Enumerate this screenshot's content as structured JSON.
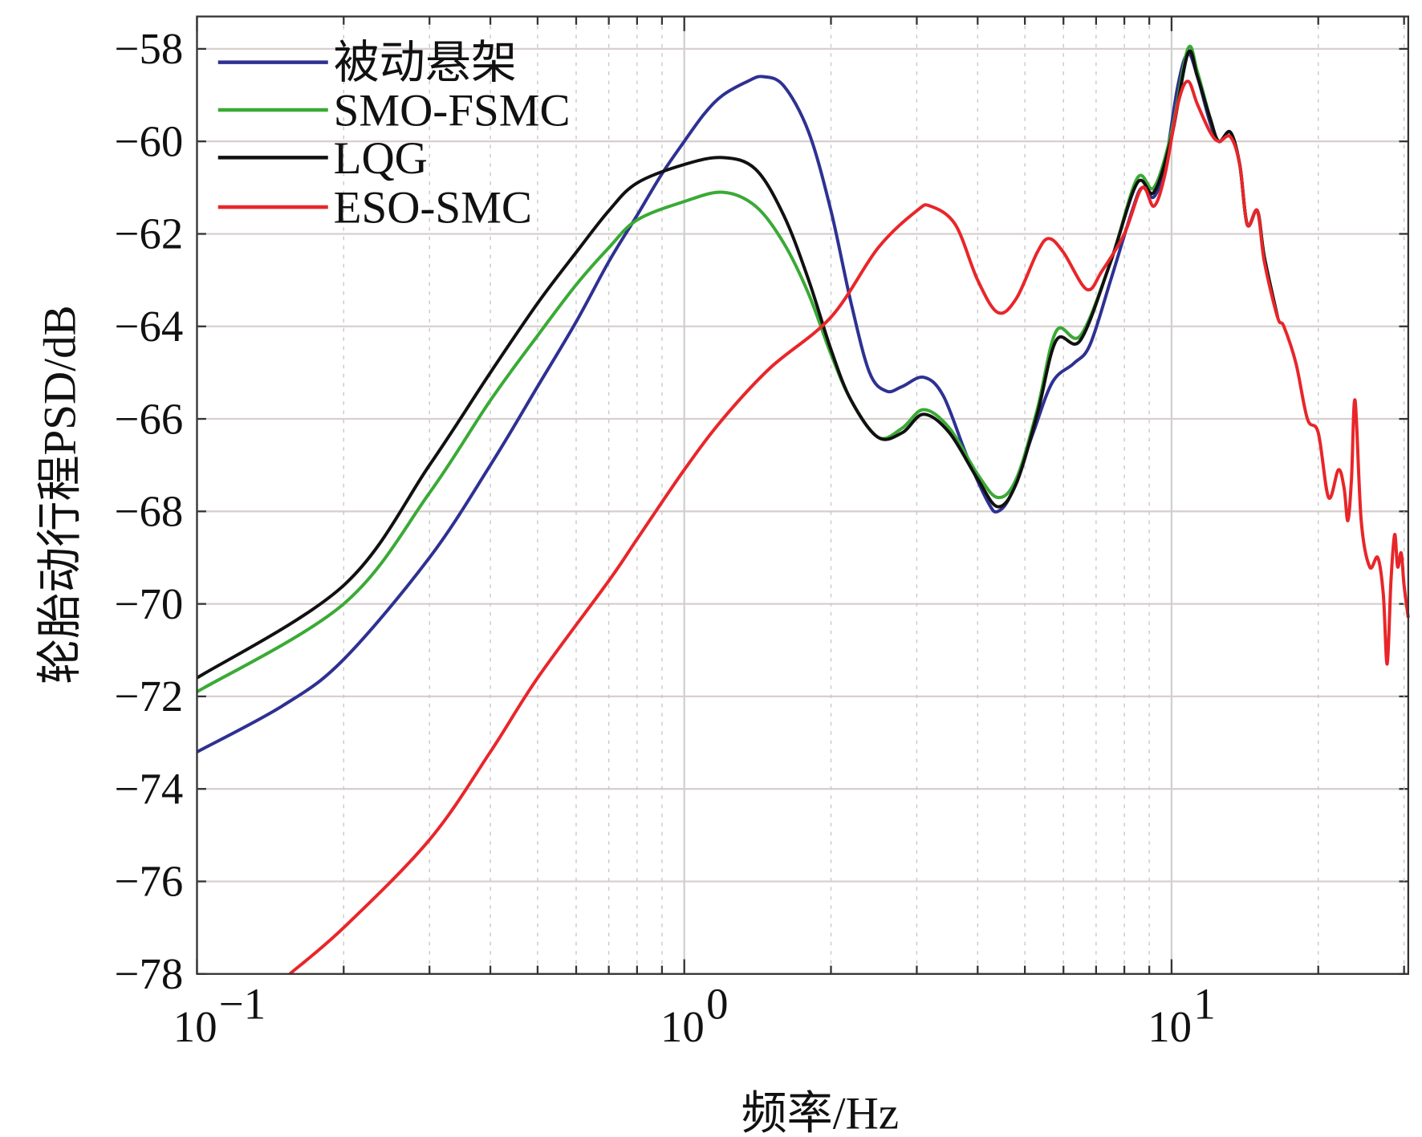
{
  "chart_data": {
    "type": "line",
    "title": "",
    "xlabel": "频率/Hz",
    "ylabel": "轮胎动行程PSD/dB",
    "xscale": "log",
    "xlim": [
      0.1,
      30.6
    ],
    "ylim": [
      -78,
      -57.3
    ],
    "xticks": [
      {
        "value": 0.1,
        "base": "10",
        "exp": "−1"
      },
      {
        "value": 1,
        "base": "10",
        "exp": "0"
      },
      {
        "value": 10,
        "base": "10",
        "exp": "1"
      }
    ],
    "yticks": [
      -58,
      -60,
      -62,
      -64,
      -66,
      -68,
      -70,
      -72,
      -74,
      -76,
      -78
    ],
    "ytick_labels": [
      "−58",
      "−60",
      "−62",
      "−64",
      "−66",
      "−68",
      "−70",
      "−72",
      "−74",
      "−76",
      "−78"
    ],
    "grid": true,
    "legend_position": "top-left",
    "series": [
      {
        "name": "被动悬架",
        "color": "#2e3192",
        "x": [
          0.1,
          0.15,
          0.2,
          0.3,
          0.4,
          0.5,
          0.6,
          0.7,
          0.8,
          0.9,
          1.0,
          1.1,
          1.2,
          1.35,
          1.45,
          1.6,
          1.8,
          2.0,
          2.2,
          2.4,
          2.6,
          2.8,
          3.1,
          3.4,
          3.8,
          4.2,
          4.4,
          4.7,
          5.2,
          5.7,
          6.3,
          6.8,
          7.5,
          8.3,
          8.7,
          9.2,
          9.7,
          10.3,
          10.8,
          11.3,
          12.0,
          12.5,
          13.2,
          13.8,
          14.3,
          15.0,
          15.5,
          16.5
        ],
        "y": [
          -73.2,
          -72.2,
          -71.2,
          -69.0,
          -67.0,
          -65.3,
          -63.9,
          -62.6,
          -61.6,
          -60.7,
          -60.0,
          -59.4,
          -59.0,
          -58.7,
          -58.6,
          -58.8,
          -59.8,
          -61.5,
          -63.5,
          -65.0,
          -65.4,
          -65.3,
          -65.1,
          -65.5,
          -66.8,
          -67.8,
          -68.0,
          -67.6,
          -66.3,
          -65.2,
          -64.8,
          -64.4,
          -63.0,
          -61.5,
          -61.0,
          -61.2,
          -60.5,
          -58.8,
          -58.1,
          -58.6,
          -59.6,
          -60.0,
          -59.8,
          -60.5,
          -61.8,
          -61.5,
          -62.5,
          -63.8
        ]
      },
      {
        "name": "SMO-FSMC",
        "color": "#3aaa35",
        "x": [
          0.1,
          0.2,
          0.3,
          0.4,
          0.5,
          0.6,
          0.7,
          0.8,
          1.0,
          1.2,
          1.4,
          1.6,
          1.8,
          2.0,
          2.2,
          2.5,
          2.8,
          3.1,
          3.5,
          4.0,
          4.4,
          4.8,
          5.3,
          5.8,
          6.5,
          7.5,
          8.5,
          9.2,
          10.0,
          10.8,
          11.3,
          12.0,
          12.5,
          13.2,
          13.8,
          14.3,
          15.0,
          15.5,
          16.5
        ],
        "y": [
          -71.9,
          -70.0,
          -67.6,
          -65.6,
          -64.2,
          -63.1,
          -62.3,
          -61.7,
          -61.3,
          -61.1,
          -61.4,
          -62.2,
          -63.3,
          -64.6,
          -65.6,
          -66.4,
          -66.2,
          -65.8,
          -66.2,
          -67.2,
          -67.7,
          -67.3,
          -65.8,
          -64.1,
          -64.2,
          -62.6,
          -60.8,
          -61.0,
          -59.8,
          -58.0,
          -58.5,
          -59.5,
          -60.0,
          -59.8,
          -60.5,
          -61.8,
          -61.5,
          -62.5,
          -63.8
        ]
      },
      {
        "name": "LQG",
        "color": "#111111",
        "x": [
          0.1,
          0.2,
          0.3,
          0.4,
          0.5,
          0.6,
          0.7,
          0.8,
          1.0,
          1.2,
          1.4,
          1.6,
          1.8,
          2.0,
          2.2,
          2.5,
          2.8,
          3.1,
          3.5,
          4.0,
          4.4,
          4.8,
          5.3,
          5.8,
          6.5,
          7.5,
          8.5,
          9.2,
          10.0,
          10.8,
          11.3,
          12.0,
          12.5,
          13.2,
          13.8,
          14.3,
          15.0,
          15.5,
          16.5
        ],
        "y": [
          -71.6,
          -69.6,
          -67.0,
          -65.0,
          -63.5,
          -62.4,
          -61.5,
          -60.9,
          -60.5,
          -60.35,
          -60.6,
          -61.6,
          -63.0,
          -64.5,
          -65.6,
          -66.4,
          -66.3,
          -65.9,
          -66.3,
          -67.3,
          -67.9,
          -67.4,
          -65.9,
          -64.3,
          -64.3,
          -62.6,
          -60.9,
          -61.1,
          -59.9,
          -58.1,
          -58.6,
          -59.5,
          -60.0,
          -59.8,
          -60.5,
          -61.8,
          -61.5,
          -62.5,
          -63.8
        ]
      },
      {
        "name": "ESO-SMC",
        "color": "#e8262a",
        "x": [
          0.155,
          0.2,
          0.3,
          0.4,
          0.5,
          0.7,
          0.8,
          1.0,
          1.2,
          1.5,
          2.0,
          2.5,
          3.0,
          3.2,
          3.6,
          4.0,
          4.4,
          4.8,
          5.3,
          5.6,
          6.0,
          6.7,
          7.2,
          8.0,
          8.7,
          9.2,
          9.7,
          10.3,
          10.8,
          11.3,
          12.0,
          12.5,
          13.2,
          13.8,
          14.3,
          15.0,
          15.5,
          16.5,
          17.0,
          18.0,
          19.0,
          20.0,
          21.0,
          22.0,
          22.6,
          23.0,
          23.4,
          23.8,
          24.5,
          25.5,
          26.5,
          27.2,
          27.7,
          28.2,
          28.7,
          29.1,
          29.6,
          30.0,
          30.6
        ],
        "y": [
          -78.0,
          -77.0,
          -75.1,
          -73.2,
          -71.6,
          -69.5,
          -68.6,
          -67.1,
          -66.0,
          -64.9,
          -63.8,
          -62.3,
          -61.5,
          -61.4,
          -61.8,
          -63.0,
          -63.7,
          -63.4,
          -62.4,
          -62.1,
          -62.4,
          -63.2,
          -62.8,
          -62.0,
          -61.0,
          -61.4,
          -60.7,
          -59.2,
          -58.7,
          -59.2,
          -59.8,
          -60.0,
          -59.9,
          -60.5,
          -61.8,
          -61.5,
          -62.6,
          -63.8,
          -64.0,
          -64.8,
          -66.0,
          -66.3,
          -67.7,
          -67.1,
          -67.5,
          -68.2,
          -67.3,
          -65.6,
          -68.2,
          -69.2,
          -69.0,
          -69.8,
          -71.3,
          -69.5,
          -68.5,
          -69.2,
          -68.9,
          -69.6,
          -70.3
        ]
      }
    ]
  }
}
